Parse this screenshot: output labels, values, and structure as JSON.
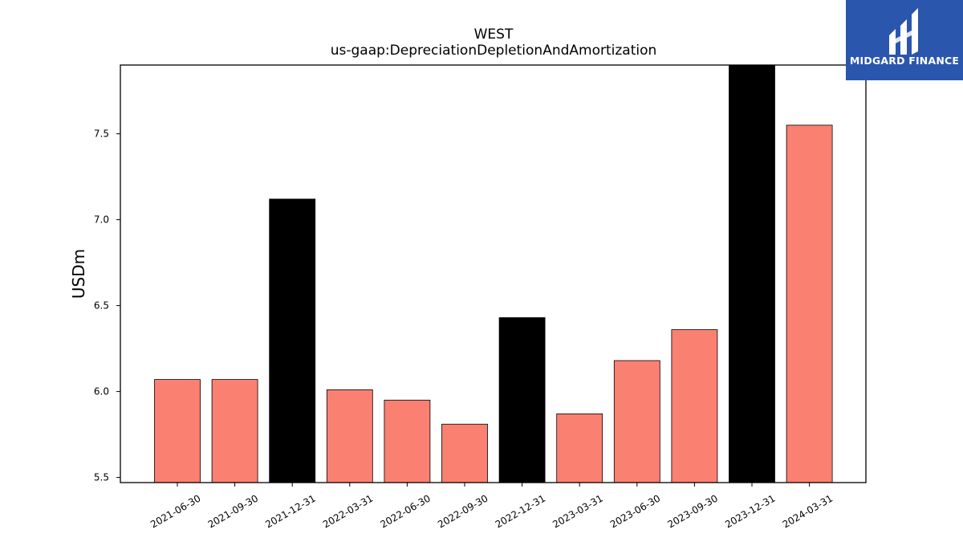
{
  "chart_data": {
    "type": "bar",
    "title": "WEST",
    "subtitle": "us-gaap:DepreciationDepletionAndAmortization",
    "xlabel": "",
    "ylabel": "USDm",
    "ylim": [
      5.47,
      7.9
    ],
    "yticks": [
      "5.5",
      "6.0",
      "6.5",
      "7.0",
      "7.5"
    ],
    "categories": [
      "2021-06-30",
      "2021-09-30",
      "2021-12-31",
      "2022-03-31",
      "2022-06-30",
      "2022-09-30",
      "2022-12-31",
      "2023-03-31",
      "2023-06-30",
      "2023-09-30",
      "2023-12-31",
      "2024-03-31"
    ],
    "values": [
      6.07,
      6.07,
      7.12,
      6.01,
      5.95,
      5.81,
      6.43,
      5.87,
      6.18,
      6.36,
      7.9,
      7.55
    ],
    "bar_colors": [
      "#fa8072",
      "#fa8072",
      "#000000",
      "#fa8072",
      "#fa8072",
      "#fa8072",
      "#000000",
      "#fa8072",
      "#fa8072",
      "#fa8072",
      "#000000",
      "#fa8072"
    ],
    "grid": false,
    "legend": "none"
  },
  "logo": {
    "text": "MIDGARD FINANCE",
    "background": "#2a56ad"
  }
}
